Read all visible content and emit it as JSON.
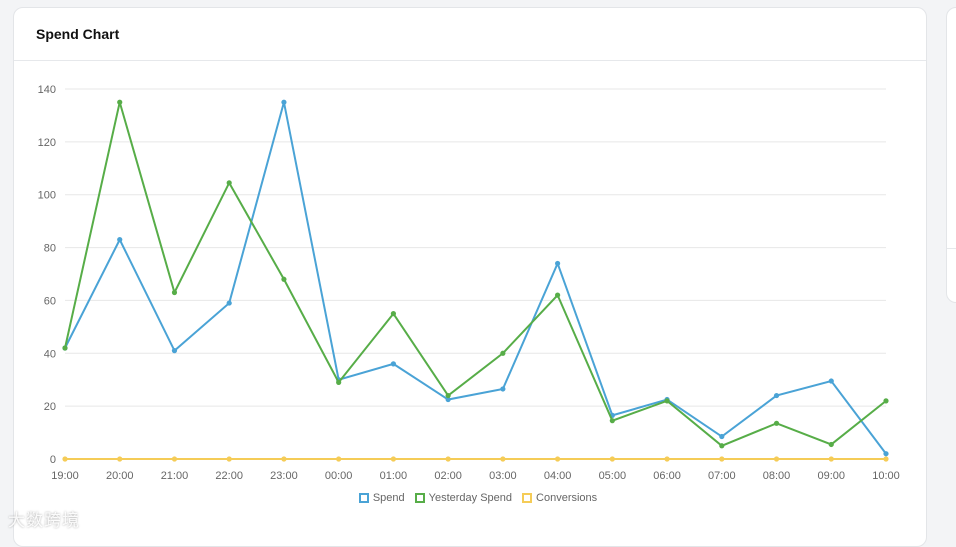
{
  "card": {
    "title": "Spend Chart"
  },
  "colors": {
    "spend": "#4aa3d6",
    "yesterday": "#57ad48",
    "conversions": "#f5cc57",
    "grid": "#e7e7e7"
  },
  "chart_data": {
    "type": "line",
    "title": "Spend Chart",
    "x": [
      "19:00",
      "20:00",
      "21:00",
      "22:00",
      "23:00",
      "00:00",
      "01:00",
      "02:00",
      "03:00",
      "04:00",
      "05:00",
      "06:00",
      "07:00",
      "08:00",
      "09:00",
      "10:00"
    ],
    "yticks": [
      "0",
      "20",
      "40",
      "60",
      "80",
      "100",
      "120",
      "140"
    ],
    "ylim": [
      0,
      140
    ],
    "grid": true,
    "legend_position": "bottom",
    "series": [
      {
        "name": "Spend",
        "color": "#4aa3d6",
        "values": [
          42,
          83,
          41,
          59,
          135,
          30,
          36,
          22.5,
          26.5,
          74,
          16.5,
          22.5,
          8.5,
          24,
          29.5,
          2
        ]
      },
      {
        "name": "Yesterday Spend",
        "color": "#57ad48",
        "values": [
          42,
          135,
          63,
          104.5,
          68,
          29,
          55,
          24,
          40,
          62,
          14.5,
          22,
          5,
          13.5,
          5.5,
          22
        ]
      },
      {
        "name": "Conversions",
        "color": "#f5cc57",
        "values": [
          0,
          0,
          0,
          0,
          0,
          0,
          0,
          0,
          0,
          0,
          0,
          0,
          0,
          0,
          0,
          0
        ]
      }
    ]
  },
  "watermark": "大数跨境"
}
